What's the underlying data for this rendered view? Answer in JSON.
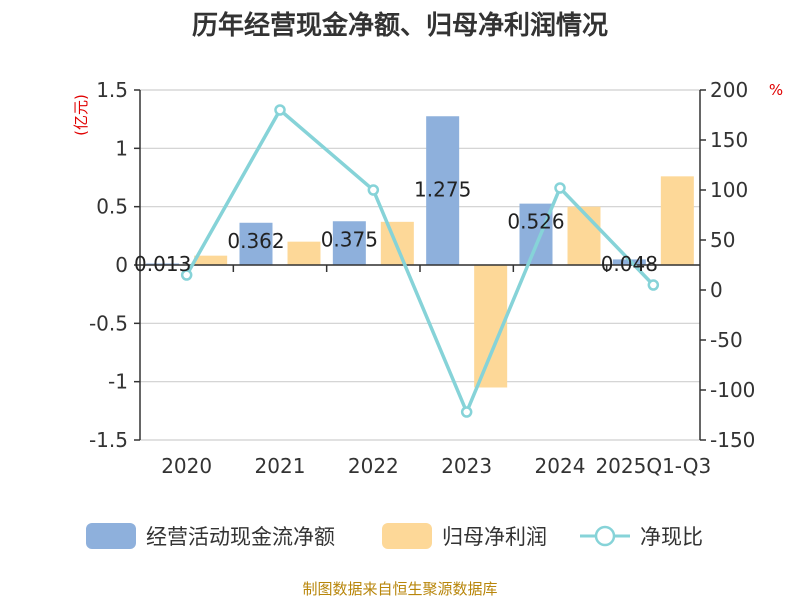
{
  "chart_data": {
    "type": "bar",
    "title": "历年经营现金净额、归母净利润情况",
    "categories": [
      "2020",
      "2021",
      "2022",
      "2023",
      "2024",
      "2025Q1-Q3"
    ],
    "left_axis": {
      "unit": "(亿元)",
      "ylim": [
        -1.5,
        1.5
      ],
      "ticks": [
        "1.5",
        "1",
        "0.5",
        "0",
        "-0.5",
        "-1",
        "-1.5"
      ]
    },
    "right_axis": {
      "unit": "%",
      "ylim": [
        -150,
        200
      ],
      "ticks": [
        "200",
        "150",
        "100",
        "50",
        "0",
        "-50",
        "-100",
        "-150"
      ]
    },
    "series": [
      {
        "name": "经营活动现金流净额",
        "type": "bar",
        "axis": "left",
        "color": "#8eb0dc",
        "values": [
          0.013,
          0.362,
          0.375,
          1.275,
          0.526,
          0.048
        ],
        "labels": [
          "0.013",
          "0.362",
          "0.375",
          "1.275",
          "0.526",
          "0.048"
        ]
      },
      {
        "name": "归母净利润",
        "type": "bar",
        "axis": "left",
        "color": "#fdd898",
        "values": [
          0.08,
          0.2,
          0.37,
          -1.05,
          0.5,
          0.76
        ]
      },
      {
        "name": "净现比",
        "type": "line",
        "axis": "right",
        "color": "#86d3d8",
        "values": [
          15,
          180,
          100,
          -122,
          102,
          5
        ]
      }
    ],
    "grid": true,
    "legend_position": "bottom"
  },
  "source": "制图数据来自恒生聚源数据库"
}
